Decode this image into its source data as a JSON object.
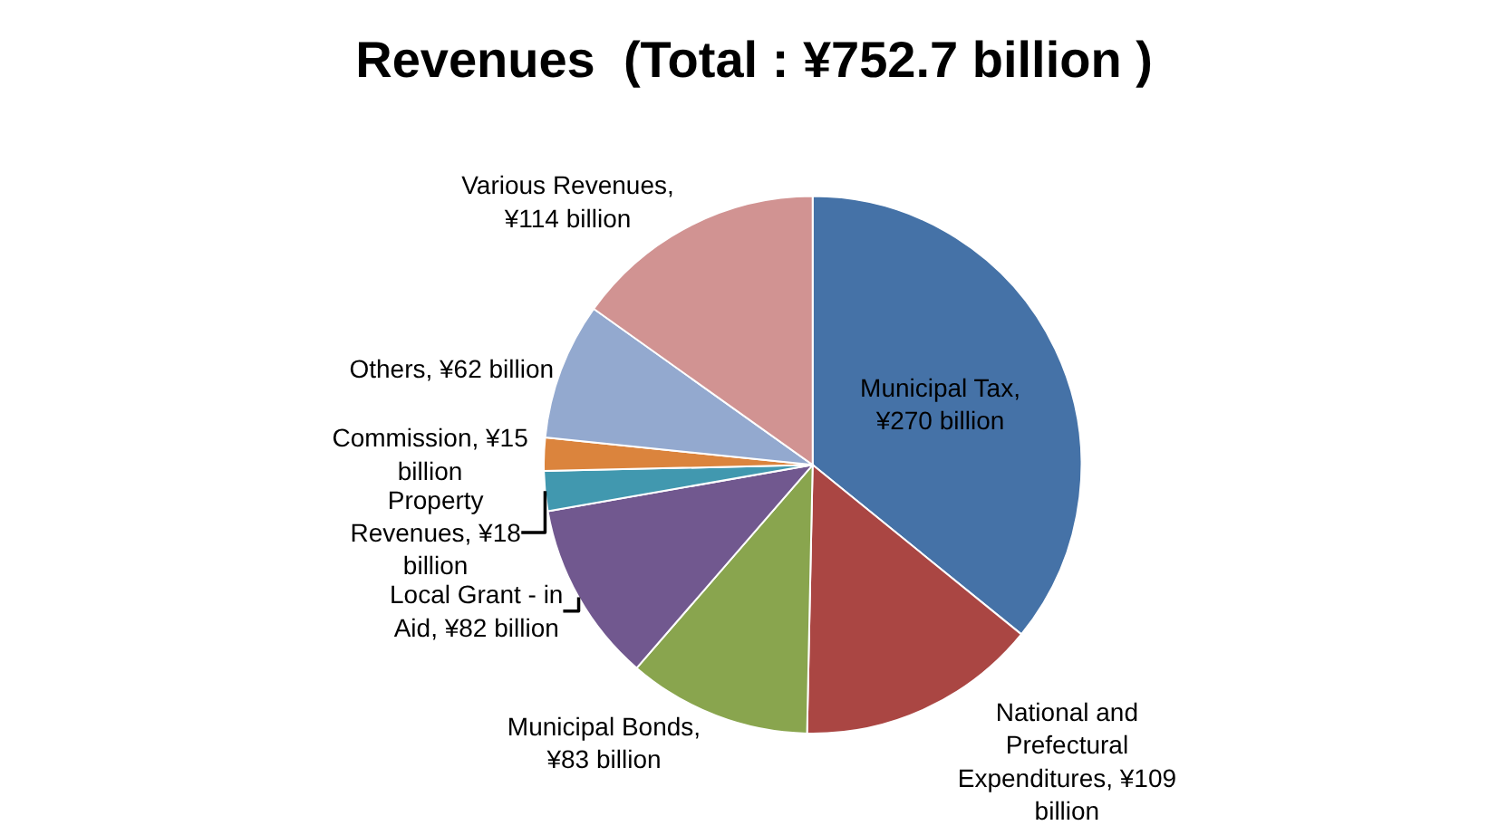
{
  "chart_data": {
    "type": "pie",
    "title": "Revenues  (Total : ¥752.7 billion )",
    "categories": [
      "Municipal Tax,\n¥270 billion",
      "National and\nPrefectural\nExpenditures, ¥109\nbillion",
      "Municipal Bonds,\n¥83 billion",
      "Local Grant - in\nAid, ¥82 billion",
      "Property\nRevenues, ¥18\nbillion",
      "Commission, ¥15\nbillion",
      "Others, ¥62 billion",
      "Various Revenues,\n¥114 billion"
    ],
    "values": [
      270,
      109,
      83,
      82,
      18,
      15,
      62,
      114
    ],
    "colors": [
      "#4572a7",
      "#aa4643",
      "#89a54e",
      "#71588f",
      "#4198af",
      "#db843d",
      "#93a9cf",
      "#d19392"
    ],
    "legend": false
  }
}
